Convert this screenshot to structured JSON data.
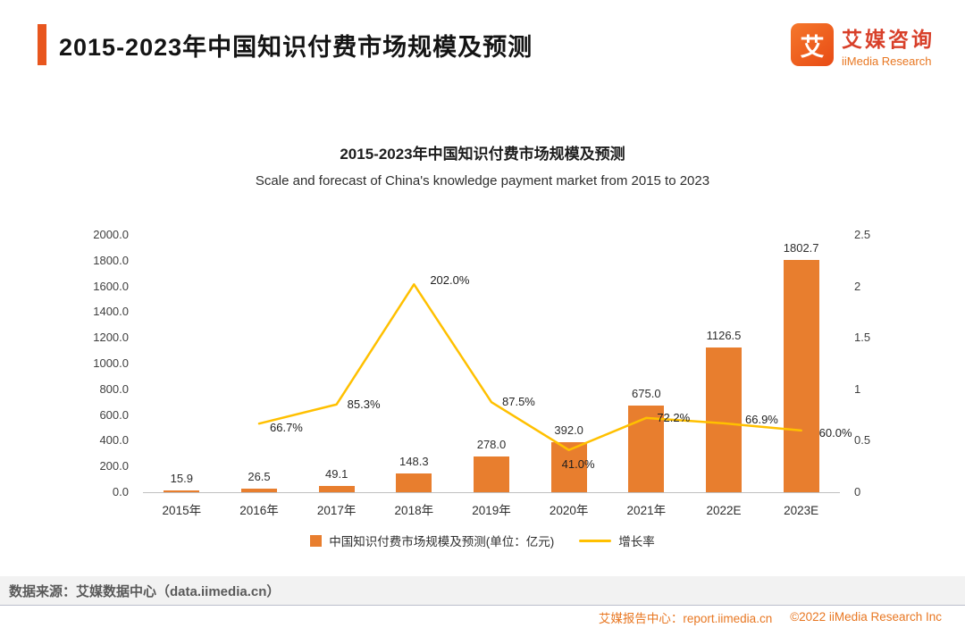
{
  "header": {
    "title": "2015-2023年中国知识付费市场规模及预测",
    "logo": {
      "icon_glyph": "艾",
      "brand_cn": "艾媒咨询",
      "brand_en": "iiMedia Research"
    }
  },
  "chart_data": {
    "type": "bar+line",
    "title": "2015-2023年中国知识付费市场规模及预测",
    "subtitle": "Scale and forecast of China's knowledge payment market from 2015 to 2023",
    "categories": [
      "2015年",
      "2016年",
      "2017年",
      "2018年",
      "2019年",
      "2020年",
      "2021年",
      "2022E",
      "2023E"
    ],
    "series": [
      {
        "name": "中国知识付费市场规模及预测(单位：亿元)",
        "type": "bar",
        "axis": "left",
        "color": "#E87E2E",
        "values": [
          15.9,
          26.5,
          49.1,
          148.3,
          278.0,
          392.0,
          675.0,
          1126.5,
          1802.7
        ],
        "labels": [
          "15.9",
          "26.5",
          "49.1",
          "148.3",
          "278.0",
          "392.0",
          "675.0",
          "1126.5",
          "1802.7"
        ]
      },
      {
        "name": "增长率",
        "type": "line",
        "axis": "right",
        "color": "#FFC000",
        "values": [
          null,
          0.667,
          0.853,
          2.02,
          0.875,
          0.41,
          0.722,
          0.669,
          0.6
        ],
        "labels": [
          null,
          "66.7%",
          "85.3%",
          "202.0%",
          "87.5%",
          "41.0%",
          "72.2%",
          "66.9%",
          "60.0%"
        ]
      }
    ],
    "left_axis": {
      "min": 0,
      "max": 2000,
      "step": 200
    },
    "right_axis": {
      "min": 0,
      "max": 2.5,
      "step": 0.5
    },
    "grid": false,
    "legend_position": "bottom"
  },
  "footer": {
    "source": "数据来源：艾媒数据中心（data.iimedia.cn）",
    "report_center": "艾媒报告中心：report.iimedia.cn",
    "copyright": "©2022  iiMedia Research Inc"
  }
}
